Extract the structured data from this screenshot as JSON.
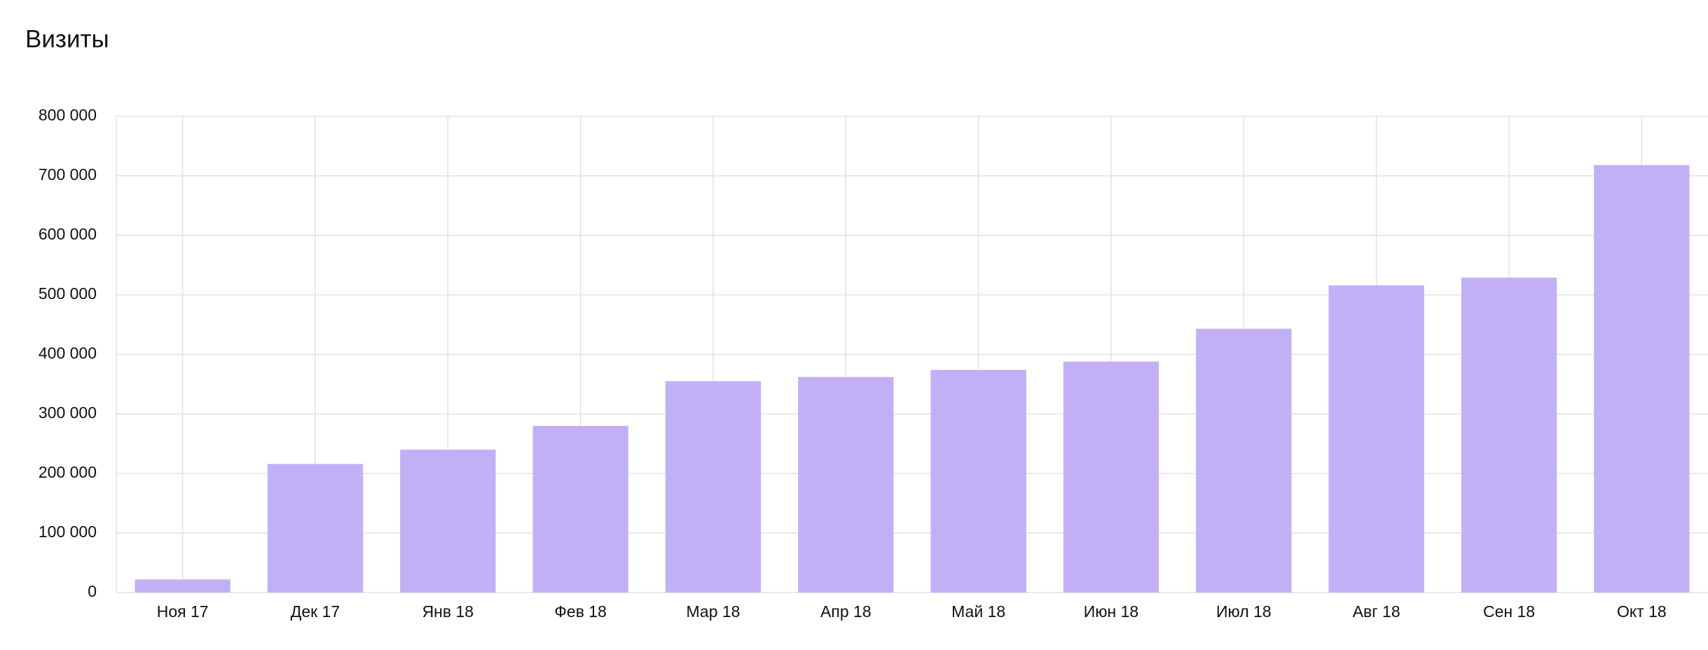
{
  "chart_data": {
    "type": "bar",
    "title": "Визиты",
    "categories": [
      "Ноя 17",
      "Дек 17",
      "Янв 18",
      "Фев 18",
      "Мар 18",
      "Апр 18",
      "Май 18",
      "Июн 18",
      "Июл 18",
      "Авг 18",
      "Сен 18",
      "Окт 18"
    ],
    "values": [
      22000,
      216000,
      240000,
      280000,
      355000,
      362000,
      374000,
      388000,
      443000,
      516000,
      529000,
      718000
    ],
    "color": "#c2b0f7",
    "ylim": [
      0,
      800000
    ],
    "yticks": [
      0,
      {
        "value": 100000,
        "label": "100 000"
      },
      {
        "value": 200000,
        "label": "200 000"
      },
      {
        "value": 300000,
        "label": "300 000"
      },
      {
        "value": 400000,
        "label": "400 000"
      },
      {
        "value": 500000,
        "label": "500 000"
      },
      {
        "value": 600000,
        "label": "600 000"
      },
      {
        "value": 700000,
        "label": "700 000"
      },
      {
        "value": 800000,
        "label": "800 000"
      }
    ],
    "grid": true
  }
}
